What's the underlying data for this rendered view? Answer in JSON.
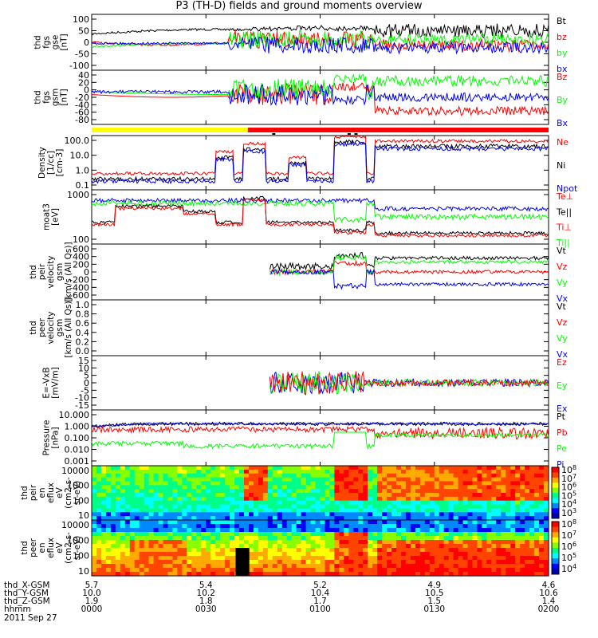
{
  "title": "P3 (TH-D) fields and ground moments overview",
  "date": "2011 Sep 27",
  "colors": {
    "black": "#000000",
    "red": "#ff0000",
    "green": "#00ff00",
    "blue": "#0000ff",
    "yellow": "#ffff00"
  },
  "chart_data": {
    "type": "line",
    "x": {
      "label": "hhmm",
      "ticks": [
        "0000",
        "0030",
        "0100",
        "0130",
        "0200"
      ],
      "rows": [
        {
          "label": "thd_X-GSM",
          "values": [
            "5.7",
            "5.4",
            "5.2",
            "4.9",
            "4.6"
          ]
        },
        {
          "label": "thd_Y-GSM",
          "values": [
            "10.0",
            "10.2",
            "10.4",
            "10.5",
            "10.6"
          ]
        },
        {
          "label": "thd_Z-GSM",
          "values": [
            "1.9",
            "1.8",
            "1.7",
            "1.5",
            "1.4"
          ]
        },
        {
          "label": "hhmm",
          "values": [
            "0000",
            "0030",
            "0100",
            "0130",
            "0200"
          ]
        }
      ]
    },
    "panels": [
      {
        "key": "fgs_gse",
        "ylabel": [
          "thd",
          "fgs",
          "gse",
          "[nT]"
        ],
        "ticks": [
          "100",
          "50",
          "0",
          "-50",
          "-100"
        ],
        "ylim": [
          -100,
          100
        ],
        "legend": [
          [
            "Bt",
            "black"
          ],
          [
            "bz",
            "red"
          ],
          [
            "by",
            "green"
          ],
          [
            "bx",
            "blue"
          ]
        ]
      },
      {
        "key": "fgs_gsm",
        "ylabel": [
          "thd",
          "fgs",
          "gsm",
          "[nT]"
        ],
        "ticks": [
          "40",
          "20",
          "0",
          "-20",
          "-40",
          "-60",
          "-80"
        ],
        "ylim": [
          -90,
          45
        ],
        "legend": [
          [
            "Bz",
            "red"
          ],
          [
            "By",
            "green"
          ],
          [
            "Bx",
            "blue"
          ]
        ]
      },
      {
        "key": "density",
        "ylabel": [
          "Density",
          "[1/cc]",
          "[cm-3]"
        ],
        "ticks": [
          "100.0",
          "10.0",
          "1.0",
          "0.1"
        ],
        "log": true,
        "ylim": [
          0.1,
          100
        ],
        "legend": [
          [
            "Ne",
            "red"
          ],
          [
            "Ni",
            "black"
          ],
          [
            "Npot",
            "blue"
          ]
        ]
      },
      {
        "key": "temp",
        "ylabel": [
          "moat3",
          "[eV]"
        ],
        "ticks": [
          "1000",
          "100"
        ],
        "log": true,
        "ylim": [
          30,
          6000
        ],
        "legend": [
          [
            "Te⊥",
            "red"
          ],
          [
            "Te||",
            "black"
          ],
          [
            "Ti⊥",
            "red"
          ],
          [
            "Ti||",
            "green"
          ]
        ]
      },
      {
        "key": "peir_vel",
        "ylabel": [
          "thd",
          "peir",
          "velocity",
          "gsm",
          "[km/s (All Qs)]"
        ],
        "ticks": [
          "600",
          "400",
          "200",
          "0",
          "-200",
          "-400",
          "-600"
        ],
        "ylim": [
          -600,
          600
        ],
        "legend": [
          [
            "Vt",
            "black"
          ],
          [
            "Vz",
            "red"
          ],
          [
            "Vy",
            "green"
          ],
          [
            "Vx",
            "blue"
          ]
        ]
      },
      {
        "key": "peer_vel",
        "ylabel": [
          "thd",
          "peer",
          "velocity",
          "gsm",
          "[km/s (All Qs)]"
        ],
        "ticks": [
          "1.0",
          "0.8",
          "0.6",
          "0.4",
          "0.2",
          "0.0"
        ],
        "ylim": [
          0,
          1
        ],
        "legend": [
          [
            "Vt",
            "black"
          ],
          [
            "Vz",
            "red"
          ],
          [
            "Vy",
            "green"
          ],
          [
            "Vx",
            "blue"
          ]
        ]
      },
      {
        "key": "efield",
        "ylabel": [
          "E=-VxB",
          "[mV/m]"
        ],
        "ticks": [
          "15",
          "10",
          "5",
          "0",
          "-5",
          "-10",
          "-15"
        ],
        "ylim": [
          -15,
          15
        ],
        "legend": [
          [
            "Ez",
            "red"
          ],
          [
            "Ey",
            "green"
          ],
          [
            "Ex",
            "blue"
          ]
        ]
      },
      {
        "key": "pressure",
        "ylabel": [
          "Pressure",
          "[nPa]"
        ],
        "ticks": [
          "10.000",
          "1.000",
          "0.100",
          "0.010",
          "0.001"
        ],
        "log": true,
        "ylim": [
          0.001,
          10
        ],
        "legend": [
          [
            "Pt",
            "black"
          ],
          [
            "Pb",
            "red"
          ],
          [
            "Pe",
            "green"
          ],
          [
            "Pi",
            "blue"
          ]
        ]
      },
      {
        "key": "peir_eflux",
        "ylabel": [
          "thd",
          "peir",
          "en",
          "eflux",
          "eV",
          "(cm^2-s-",
          "sr-eV)"
        ],
        "ticks": [
          "10000",
          "1000",
          "100",
          "10"
        ],
        "log": true,
        "ylim": [
          8,
          20000
        ],
        "spectrogram": true,
        "colorbar": [
          "10^8",
          "10^7",
          "10^6",
          "10^5",
          "10^4",
          "10^3"
        ]
      },
      {
        "key": "peer_eflux",
        "ylabel": [
          "thd",
          "peer",
          "en",
          "eflux",
          "eV",
          "(cm^2-s-",
          "sr-eV)"
        ],
        "ticks": [
          "10000",
          "1000",
          "100",
          "10"
        ],
        "log": true,
        "ylim": [
          8,
          20000
        ],
        "spectrogram": true,
        "colorbar": [
          "10^8",
          "10^7",
          "10^6",
          "10^5",
          "10^4"
        ]
      }
    ],
    "mode_bar": {
      "segments": [
        {
          "from": "0000",
          "to": "0041",
          "color": "yellow"
        },
        {
          "from": "0041",
          "to": "0200",
          "color": "red"
        }
      ]
    }
  }
}
